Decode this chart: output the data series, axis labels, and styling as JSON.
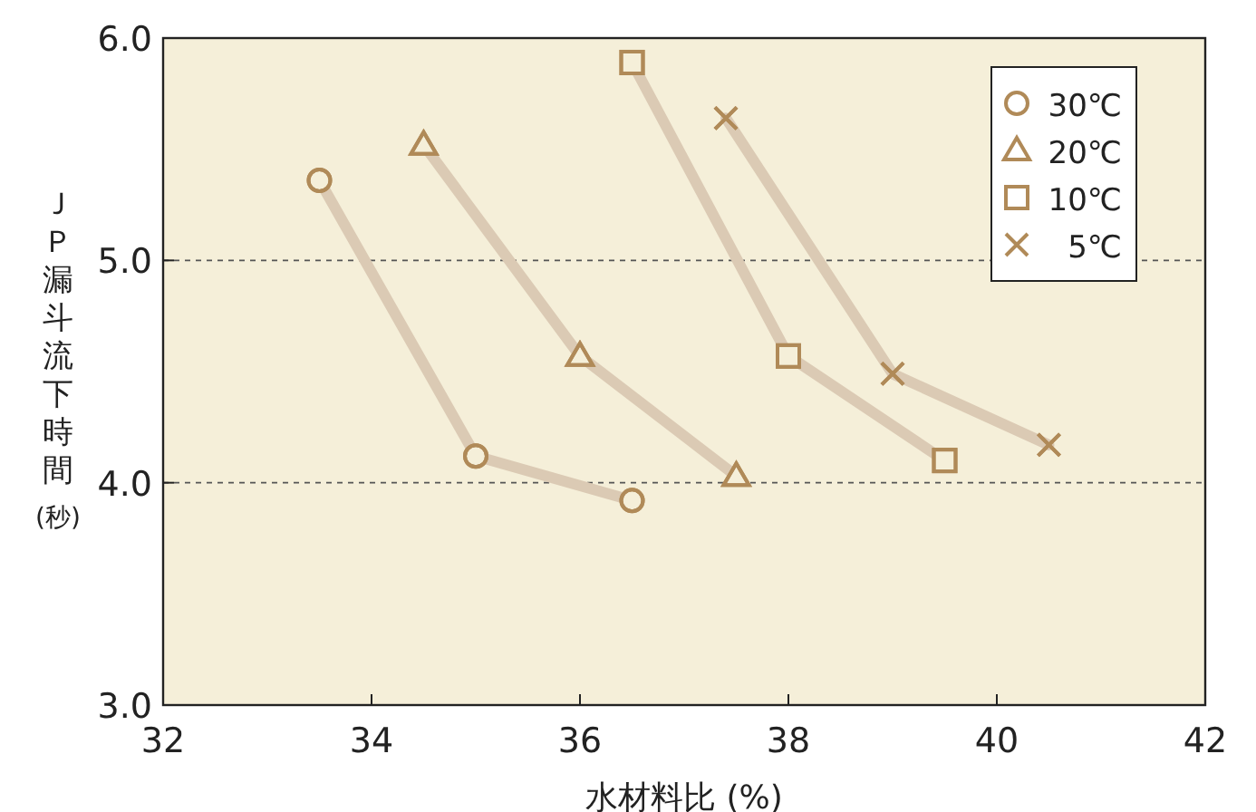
{
  "chart_data": {
    "type": "line",
    "xlabel": "水材料比 (%)",
    "ylabel": "ＪＰ漏斗流下時間(秒)",
    "xlim": [
      32,
      42
    ],
    "xticks": [
      32,
      34,
      36,
      38,
      40,
      42
    ],
    "ylim": [
      3,
      6
    ],
    "yticks": [
      {
        "value": 3,
        "label": "3.0"
      },
      {
        "value": 4,
        "label": "4.0"
      },
      {
        "value": 5,
        "label": "5.0"
      },
      {
        "value": 6,
        "label": "6.0"
      }
    ],
    "grid": "y",
    "legend": "top right",
    "line_style": "solid",
    "series": [
      {
        "name": "30℃",
        "color": "#b08a58",
        "marker": "circle",
        "x": [
          33.5,
          35,
          36.5
        ],
        "values": [
          5.36,
          4.12,
          3.92
        ]
      },
      {
        "name": "20℃",
        "color": "#b08a58",
        "marker": "triangle",
        "x": [
          34.5,
          36,
          37.5
        ],
        "values": [
          5.52,
          4.57,
          4.03
        ]
      },
      {
        "name": "10℃",
        "color": "#b08a58",
        "marker": "square",
        "x": [
          36.5,
          38,
          39.5
        ],
        "values": [
          5.89,
          4.57,
          4.1
        ]
      },
      {
        "name": "5℃",
        "color": "#b08a58",
        "marker": "cross",
        "x": [
          37.4,
          39,
          40.5
        ],
        "values": [
          5.64,
          4.49,
          4.17
        ]
      }
    ]
  }
}
